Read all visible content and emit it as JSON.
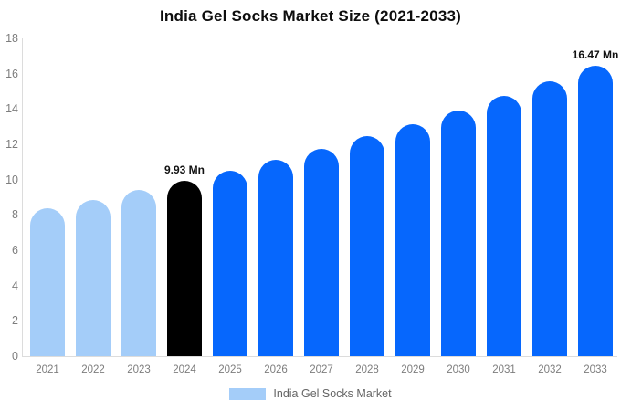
{
  "title": "India Gel Socks Market Size (2021-2033)",
  "legend": {
    "items": [
      {
        "label": "India Gel Socks Market",
        "color": "#a4cdf9"
      }
    ]
  },
  "colors": {
    "historical_bar": "#a4cdf9",
    "base_year_bar": "#000000",
    "forecast_bar": "#0667fd",
    "axis_line": "#dcdcdc",
    "tick_text": "#7d7d7d",
    "annotation_text": "#111111"
  },
  "chart_data": {
    "type": "bar",
    "title": "India Gel Socks Market Size (2021-2033)",
    "categories": [
      "2021",
      "2022",
      "2023",
      "2024",
      "2025",
      "2026",
      "2027",
      "2028",
      "2029",
      "2030",
      "2031",
      "2032",
      "2033"
    ],
    "values": [
      8.39,
      8.87,
      9.39,
      9.93,
      10.5,
      11.11,
      11.76,
      12.44,
      13.16,
      13.92,
      14.73,
      15.57,
      16.47
    ],
    "bar_colors": [
      "#a4cdf9",
      "#a4cdf9",
      "#a4cdf9",
      "#000000",
      "#0667fd",
      "#0667fd",
      "#0667fd",
      "#0667fd",
      "#0667fd",
      "#0667fd",
      "#0667fd",
      "#0667fd",
      "#0667fd"
    ],
    "unit": "Mn",
    "xlabel": "",
    "ylabel": "",
    "ylim": [
      0,
      18
    ],
    "yticks": [
      0,
      2,
      4,
      6,
      8,
      10,
      12,
      14,
      16,
      18
    ],
    "grid": false,
    "legend_position": "bottom",
    "legend_entries": [
      "India Gel Socks Market"
    ],
    "data_labels": [
      {
        "category": "2024",
        "text": "9.93 Mn"
      },
      {
        "category": "2033",
        "text": "16.47 Mn"
      }
    ]
  }
}
